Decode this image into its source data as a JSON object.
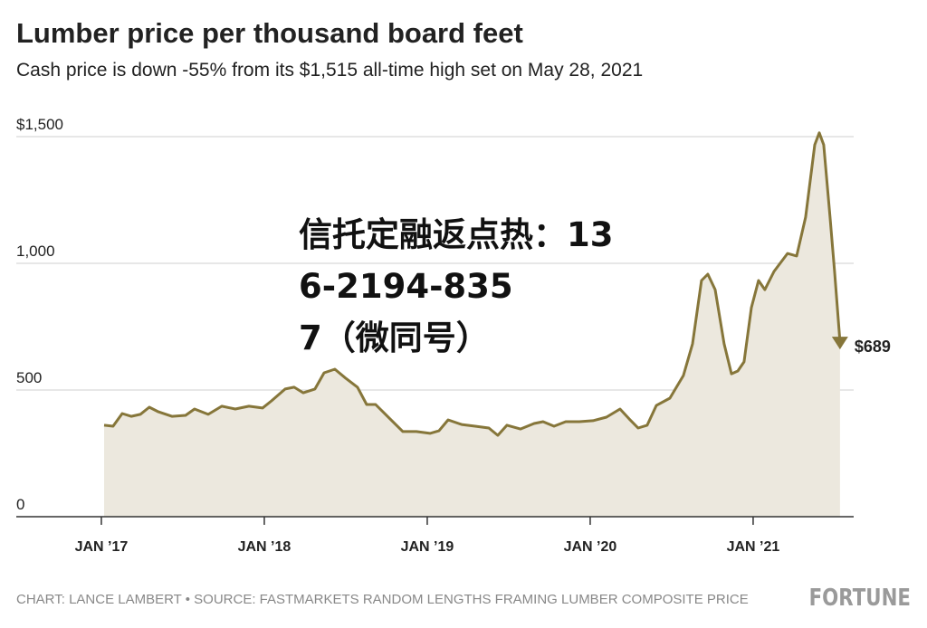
{
  "chart_data": {
    "type": "area",
    "title": "Lumber price per thousand board feet",
    "subtitle": "Cash price is down -55% from its $1,515 all-time high set on May 28, 2021",
    "x": [
      2017.017,
      2017.072,
      2017.128,
      2017.183,
      2017.239,
      2017.294,
      2017.35,
      2017.433,
      2017.517,
      2017.572,
      2017.656,
      2017.739,
      2017.822,
      2017.906,
      2017.989,
      2018.044,
      2018.128,
      2018.183,
      2018.239,
      2018.311,
      2018.367,
      2018.433,
      2018.5,
      2018.572,
      2018.628,
      2018.683,
      2018.767,
      2018.85,
      2018.933,
      2019.017,
      2019.072,
      2019.128,
      2019.211,
      2019.294,
      2019.378,
      2019.433,
      2019.489,
      2019.572,
      2019.656,
      2019.711,
      2019.778,
      2019.85,
      2019.933,
      2020.017,
      2020.1,
      2020.183,
      2020.239,
      2020.294,
      2020.35,
      2020.406,
      2020.489,
      2020.572,
      2020.628,
      2020.683,
      2020.722,
      2020.767,
      2020.822,
      2020.867,
      2020.906,
      2020.944,
      2020.989,
      2021.033,
      2021.072,
      2021.128,
      2021.211,
      2021.267,
      2021.322,
      2021.378,
      2021.406,
      2021.433,
      2021.472,
      2021.5,
      2021.533
    ],
    "values": [
      361,
      357,
      407,
      396,
      404,
      432,
      414,
      396,
      400,
      425,
      404,
      436,
      425,
      436,
      429,
      457,
      504,
      511,
      489,
      504,
      568,
      582,
      546,
      511,
      443,
      443,
      389,
      336,
      336,
      329,
      339,
      382,
      364,
      357,
      350,
      321,
      361,
      346,
      368,
      375,
      357,
      375,
      375,
      379,
      393,
      425,
      386,
      350,
      361,
      439,
      468,
      557,
      682,
      932,
      957,
      896,
      682,
      564,
      575,
      611,
      825,
      932,
      896,
      968,
      1039,
      1029,
      1182,
      1468,
      1515,
      1468,
      1182,
      968,
      689
    ],
    "color": "#86763a",
    "fill": "#ece8de",
    "xlim": [
      2016.478,
      2021.617
    ],
    "xticks": [
      {
        "value": 2017,
        "label": "JAN ’17"
      },
      {
        "value": 2018,
        "label": "JAN ’18"
      },
      {
        "value": 2019,
        "label": "JAN ’19"
      },
      {
        "value": 2020,
        "label": "JAN ’20"
      },
      {
        "value": 2021,
        "label": "JAN ’21"
      }
    ],
    "ylim": [
      0,
      1500
    ],
    "yticks": [
      {
        "value": 1500,
        "label": "$1,500"
      },
      {
        "value": 1000,
        "label": "1,000"
      },
      500,
      0
    ],
    "grid": true,
    "end_label": "$689",
    "source": "CHART: LANCE LAMBERT • SOURCE: FASTMARKETS RANDOM LENGTHS FRAMING LUMBER COMPOSITE PRICE",
    "brand": "FORTUNE",
    "watermark": [
      "信托定融返点热：13",
      "6-2194-835",
      "7（微同号）"
    ]
  }
}
